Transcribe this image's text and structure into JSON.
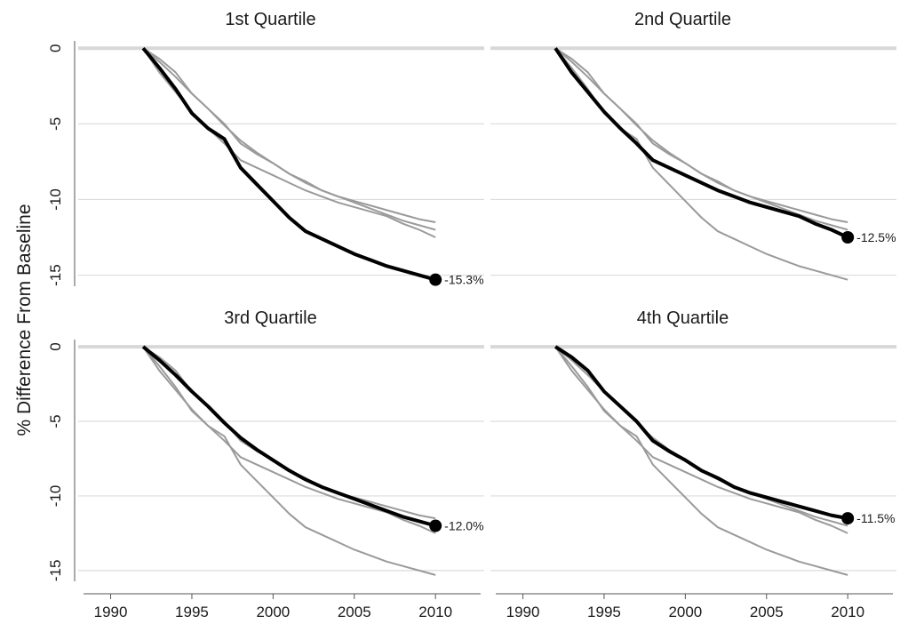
{
  "chart_data": {
    "type": "line",
    "ylabel": "% Difference From Baseline",
    "xlabel": "",
    "xlim": [
      1988,
      2013
    ],
    "ylim": [
      -16.2,
      0.6
    ],
    "xticks": [
      "1990",
      "1995",
      "2000",
      "2005",
      "2010"
    ],
    "yticks": [
      "0",
      "-5",
      "-10",
      "-15"
    ],
    "grid": "horizontal",
    "colors": {
      "highlight": "#000000",
      "other": "#9a9a9a",
      "grid": "#dcdcdc",
      "zero": "#d8d8d8"
    },
    "x": [
      1992,
      1993,
      1994,
      1995,
      1996,
      1997,
      1998,
      1999,
      2000,
      2001,
      2002,
      2003,
      2004,
      2005,
      2006,
      2007,
      2008,
      2009,
      2010
    ],
    "series_values": [
      [
        0,
        -1.3,
        -2.7,
        -4.3,
        -5.3,
        -6.0,
        -7.9,
        -9.0,
        -10.1,
        -11.2,
        -12.1,
        -12.6,
        -13.1,
        -13.6,
        -14.0,
        -14.4,
        -14.7,
        -15.0,
        -15.3
      ],
      [
        0,
        -1.6,
        -2.9,
        -4.2,
        -5.3,
        -6.3,
        -7.4,
        -7.9,
        -8.4,
        -8.9,
        -9.4,
        -9.8,
        -10.2,
        -10.5,
        -10.8,
        -11.1,
        -11.6,
        -12.0,
        -12.5
      ],
      [
        0,
        -0.9,
        -1.9,
        -3.0,
        -4.0,
        -5.1,
        -6.1,
        -6.9,
        -7.6,
        -8.3,
        -8.9,
        -9.4,
        -9.8,
        -10.2,
        -10.6,
        -11.0,
        -11.4,
        -11.7,
        -12.0
      ],
      [
        0,
        -0.7,
        -1.6,
        -3.0,
        -4.0,
        -5.0,
        -6.3,
        -7.0,
        -7.6,
        -8.3,
        -8.8,
        -9.4,
        -9.8,
        -10.1,
        -10.4,
        -10.7,
        -11.0,
        -11.3,
        -11.5
      ]
    ],
    "panels": [
      {
        "title": "1st Quartile",
        "highlight": 0,
        "end_label": "-15.3%"
      },
      {
        "title": "2nd Quartile",
        "highlight": 1,
        "end_label": "-12.5%"
      },
      {
        "title": "3rd Quartile",
        "highlight": 2,
        "end_label": "-12.0%"
      },
      {
        "title": "4th Quartile",
        "highlight": 3,
        "end_label": "-11.5%"
      }
    ]
  }
}
